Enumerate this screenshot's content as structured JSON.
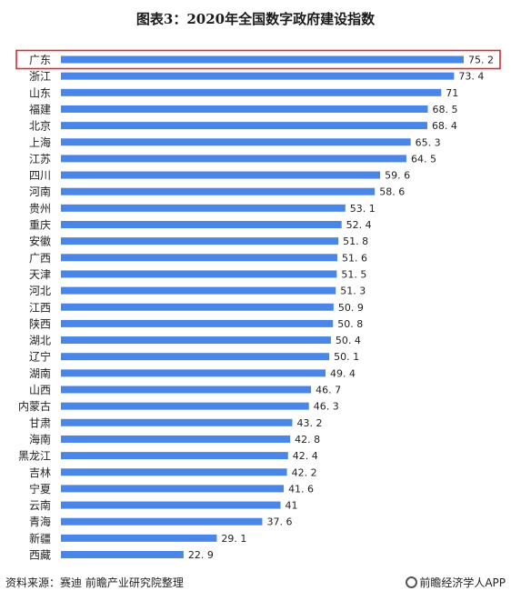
{
  "title": "图表3：2020年全国数字政府建设指数",
  "footer": {
    "source": "资料来源：赛迪 前瞻产业研究院整理",
    "brand": "前瞻经济学人APP"
  },
  "colors": {
    "bar": "#4a86e8",
    "highlight_box": "#d32f2f",
    "label_text": "#222222"
  },
  "chart_data": {
    "type": "bar",
    "orientation": "horizontal",
    "categories": [
      "广东",
      "浙江",
      "山东",
      "福建",
      "北京",
      "上海",
      "江苏",
      "四川",
      "河南",
      "贵州",
      "重庆",
      "安徽",
      "广西",
      "天津",
      "河北",
      "江西",
      "陕西",
      "湖北",
      "辽宁",
      "湖南",
      "山西",
      "内蒙古",
      "甘肃",
      "海南",
      "黑龙江",
      "吉林",
      "宁夏",
      "云南",
      "青海",
      "新疆",
      "西藏"
    ],
    "values": [
      75.2,
      73.4,
      71,
      68.5,
      68.4,
      65.3,
      64.5,
      59.6,
      58.6,
      53.1,
      52.4,
      51.8,
      51.6,
      51.5,
      51.3,
      50.9,
      50.8,
      50.4,
      50.1,
      49.4,
      46.7,
      46.3,
      43.2,
      42.8,
      42.4,
      42.2,
      41.6,
      41,
      37.6,
      29.1,
      22.9
    ],
    "value_labels": [
      "75. 2",
      "73. 4",
      "71",
      "68. 5",
      "68. 4",
      "65. 3",
      "64. 5",
      "59. 6",
      "58. 6",
      "53. 1",
      "52. 4",
      "51. 8",
      "51. 6",
      "51. 5",
      "51. 3",
      "50. 9",
      "50. 8",
      "50. 4",
      "50. 1",
      "49. 4",
      "46. 7",
      "46. 3",
      "43. 2",
      "42. 8",
      "42. 4",
      "42. 2",
      "41. 6",
      "41",
      "37. 6",
      "29. 1",
      "22. 9"
    ],
    "highlighted_category": "广东",
    "xlim": [
      0,
      75.2
    ],
    "grid": false,
    "legend": "none"
  }
}
